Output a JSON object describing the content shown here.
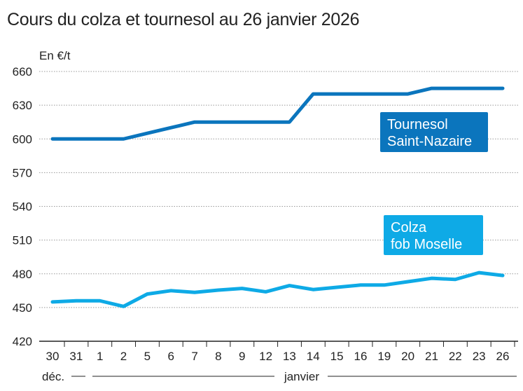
{
  "chart_data": {
    "type": "line",
    "title": "Cours du colza et tournesol au 26 janvier 2026",
    "ylabel": "En €/t",
    "ylim": [
      420,
      660
    ],
    "yticks": [
      420,
      450,
      480,
      510,
      540,
      570,
      600,
      630,
      660
    ],
    "grid": true,
    "categories": [
      "30",
      "31",
      "1",
      "2",
      "5",
      "6",
      "7",
      "8",
      "9",
      "12",
      "13",
      "14",
      "15",
      "16",
      "19",
      "20",
      "21",
      "22",
      "23",
      "26"
    ],
    "month_labels": [
      "déc.",
      "janvier"
    ],
    "series": [
      {
        "name": "Tournesol Saint-Nazaire",
        "name_lines": [
          "Tournesol",
          "Saint-Nazaire"
        ],
        "color": "#0b75bd",
        "values": [
          600,
          600,
          600,
          600,
          605,
          610,
          615,
          615,
          615,
          615,
          615,
          640,
          640,
          640,
          640,
          640,
          645,
          645,
          645,
          645
        ]
      },
      {
        "name": "Colza fob Moselle",
        "name_lines": [
          "Colza",
          "fob Moselle"
        ],
        "color": "#0eaae6",
        "values": [
          455,
          456,
          456,
          451,
          462,
          465,
          463.5,
          465.5,
          467,
          464,
          469.5,
          466,
          468,
          470,
          470,
          473,
          476,
          475,
          481,
          478.5
        ]
      }
    ]
  }
}
